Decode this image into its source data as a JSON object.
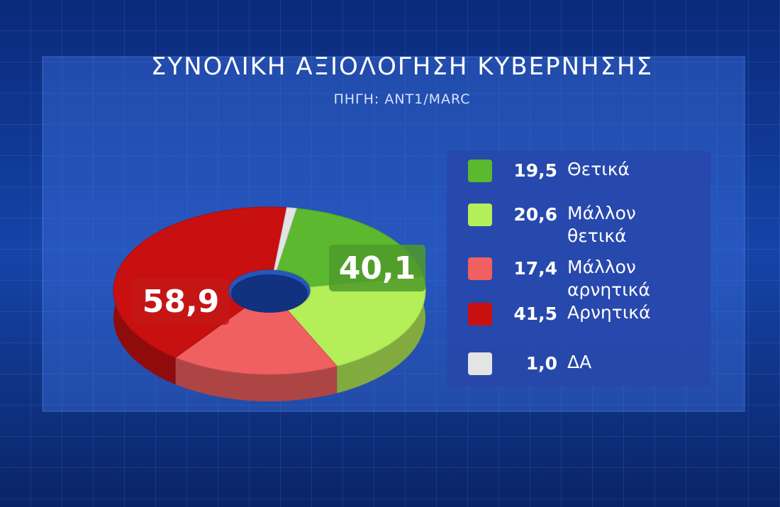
{
  "chart_data": {
    "type": "pie",
    "title": "ΣΥΝΟΛΙΚΗ ΑΞΙΟΛΟΓΗΣΗ ΚΥΒΕΡΝΗΣΗΣ",
    "subtitle": "ΠΗΓΗ: ΑΝΤ1/MARC",
    "categories": [
      "Θετικά",
      "Μάλλον θετικά",
      "Μάλλον αρνητικά",
      "Αρνητικά",
      "ΔΑ"
    ],
    "values": [
      19.5,
      20.6,
      17.4,
      41.5,
      1.0
    ],
    "value_labels": [
      "19,5",
      "20,6",
      "17,4",
      "41,5",
      "1,0"
    ],
    "colors": [
      "#5cb82e",
      "#b4ee58",
      "#f06060",
      "#c81010",
      "#e4e4e4"
    ],
    "annotations": [
      {
        "label": "40,1",
        "value": 40.1
      },
      {
        "label": "58,9",
        "value": 58.9
      }
    ]
  }
}
